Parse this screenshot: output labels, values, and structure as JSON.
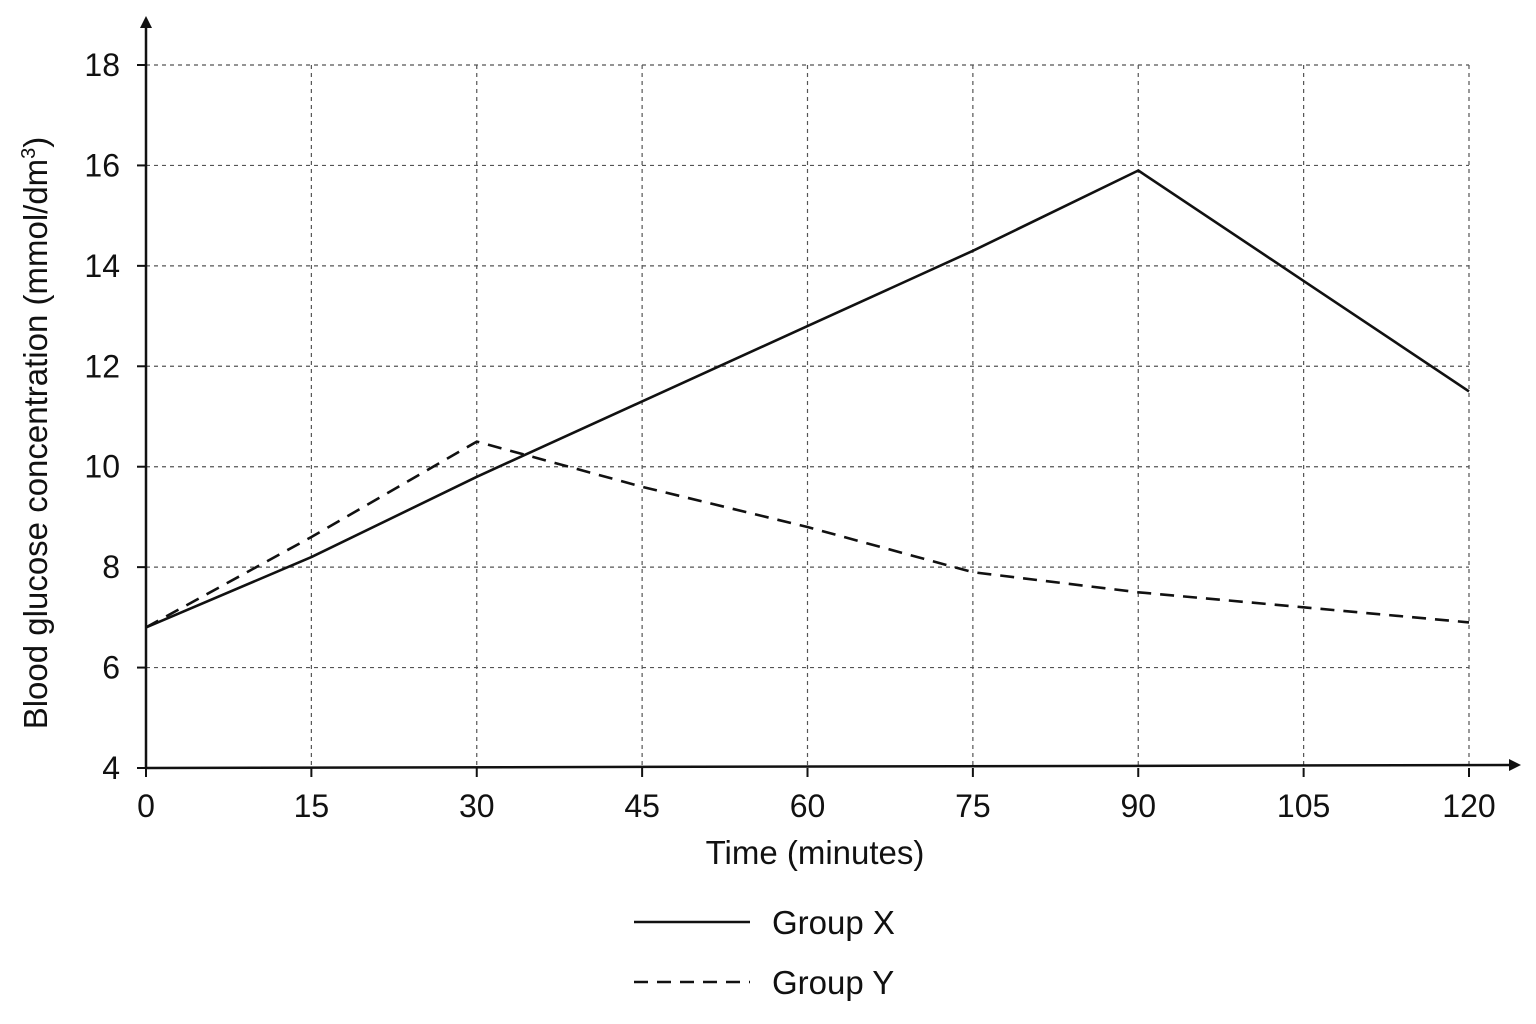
{
  "chart_data": {
    "type": "line",
    "title": "",
    "xlabel": "Time (minutes)",
    "ylabel_main": "Blood glucose concentration (mmol/dm",
    "ylabel_sup": "3",
    "ylabel_end": ")",
    "xlim": [
      0,
      120
    ],
    "ylim": [
      4,
      18
    ],
    "x_ticks": [
      "0",
      "15",
      "30",
      "45",
      "60",
      "75",
      "90",
      "105",
      "120"
    ],
    "y_ticks": [
      "4",
      "6",
      "8",
      "10",
      "12",
      "14",
      "16",
      "18"
    ],
    "grid": true,
    "legend_position": "bottom-center",
    "series": [
      {
        "name": "Group X",
        "line_style": "solid",
        "color": "#111111",
        "x": [
          0,
          15,
          30,
          45,
          60,
          75,
          90,
          105,
          120
        ],
        "y": [
          6.8,
          8.2,
          9.8,
          11.3,
          12.8,
          14.3,
          15.9,
          13.7,
          11.5
        ]
      },
      {
        "name": "Group Y",
        "line_style": "dashed",
        "color": "#111111",
        "x": [
          0,
          15,
          30,
          45,
          60,
          75,
          90,
          105,
          120
        ],
        "y": [
          6.8,
          8.6,
          10.5,
          9.6,
          8.8,
          7.9,
          7.5,
          7.2,
          6.9
        ]
      }
    ]
  }
}
